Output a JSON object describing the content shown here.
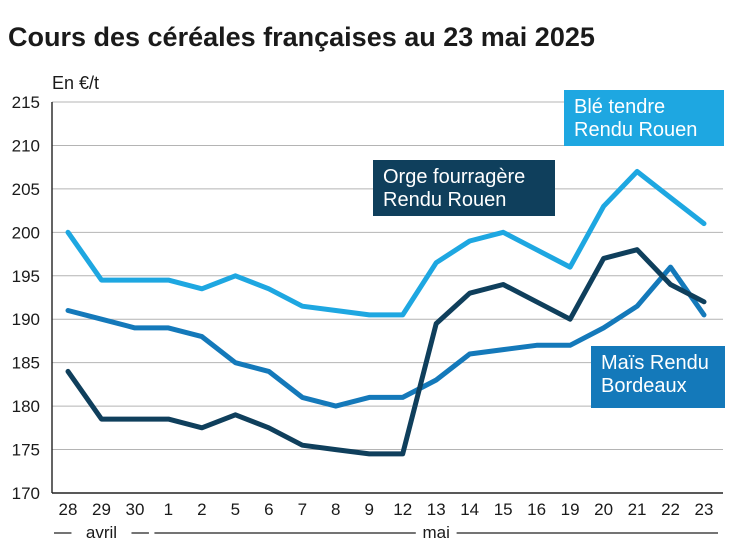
{
  "chart_data": {
    "type": "line",
    "title": "Cours des céréales françaises au 23 mai 2025",
    "ylabel": "En €/t",
    "xlabel": "",
    "ylim": [
      170,
      215
    ],
    "yticks": [
      170,
      175,
      180,
      185,
      190,
      195,
      200,
      205,
      210,
      215
    ],
    "grid": true,
    "categories": [
      "28",
      "29",
      "30",
      "1",
      "2",
      "5",
      "6",
      "7",
      "8",
      "9",
      "12",
      "13",
      "14",
      "15",
      "16",
      "19",
      "20",
      "21",
      "22",
      "23"
    ],
    "months": [
      {
        "label": "avril",
        "first_index": 0,
        "last_index": 2
      },
      {
        "label": "mai",
        "first_index": 3,
        "last_index": 19
      }
    ],
    "series": [
      {
        "name": "Blé tendre Rendu Rouen",
        "legend_lines": [
          "Blé tendre",
          "Rendu Rouen"
        ],
        "color": "#1ea7e1",
        "values": [
          200,
          194.5,
          194.5,
          194.5,
          193.5,
          195,
          193.5,
          191.5,
          191,
          190.5,
          190.5,
          196.5,
          199,
          200,
          198,
          196,
          203,
          207,
          204,
          201
        ]
      },
      {
        "name": "Maïs Rendu Bordeaux",
        "legend_lines": [
          "Maïs Rendu",
          "Bordeaux"
        ],
        "color": "#1479ba",
        "values": [
          191,
          190,
          189,
          189,
          188,
          185,
          184,
          181,
          180,
          181,
          181,
          183,
          186,
          186.5,
          187,
          187,
          189,
          191.5,
          196,
          190.5
        ]
      },
      {
        "name": "Orge fourragère Rendu Rouen",
        "legend_lines": [
          "Orge fourragère",
          "Rendu Rouen"
        ],
        "color": "#0f3f5c",
        "values": [
          184,
          178.5,
          178.5,
          178.5,
          177.5,
          179,
          177.5,
          175.5,
          175,
          174.5,
          174.5,
          189.5,
          193,
          194,
          192,
          190,
          197,
          198,
          194,
          192
        ]
      }
    ]
  }
}
